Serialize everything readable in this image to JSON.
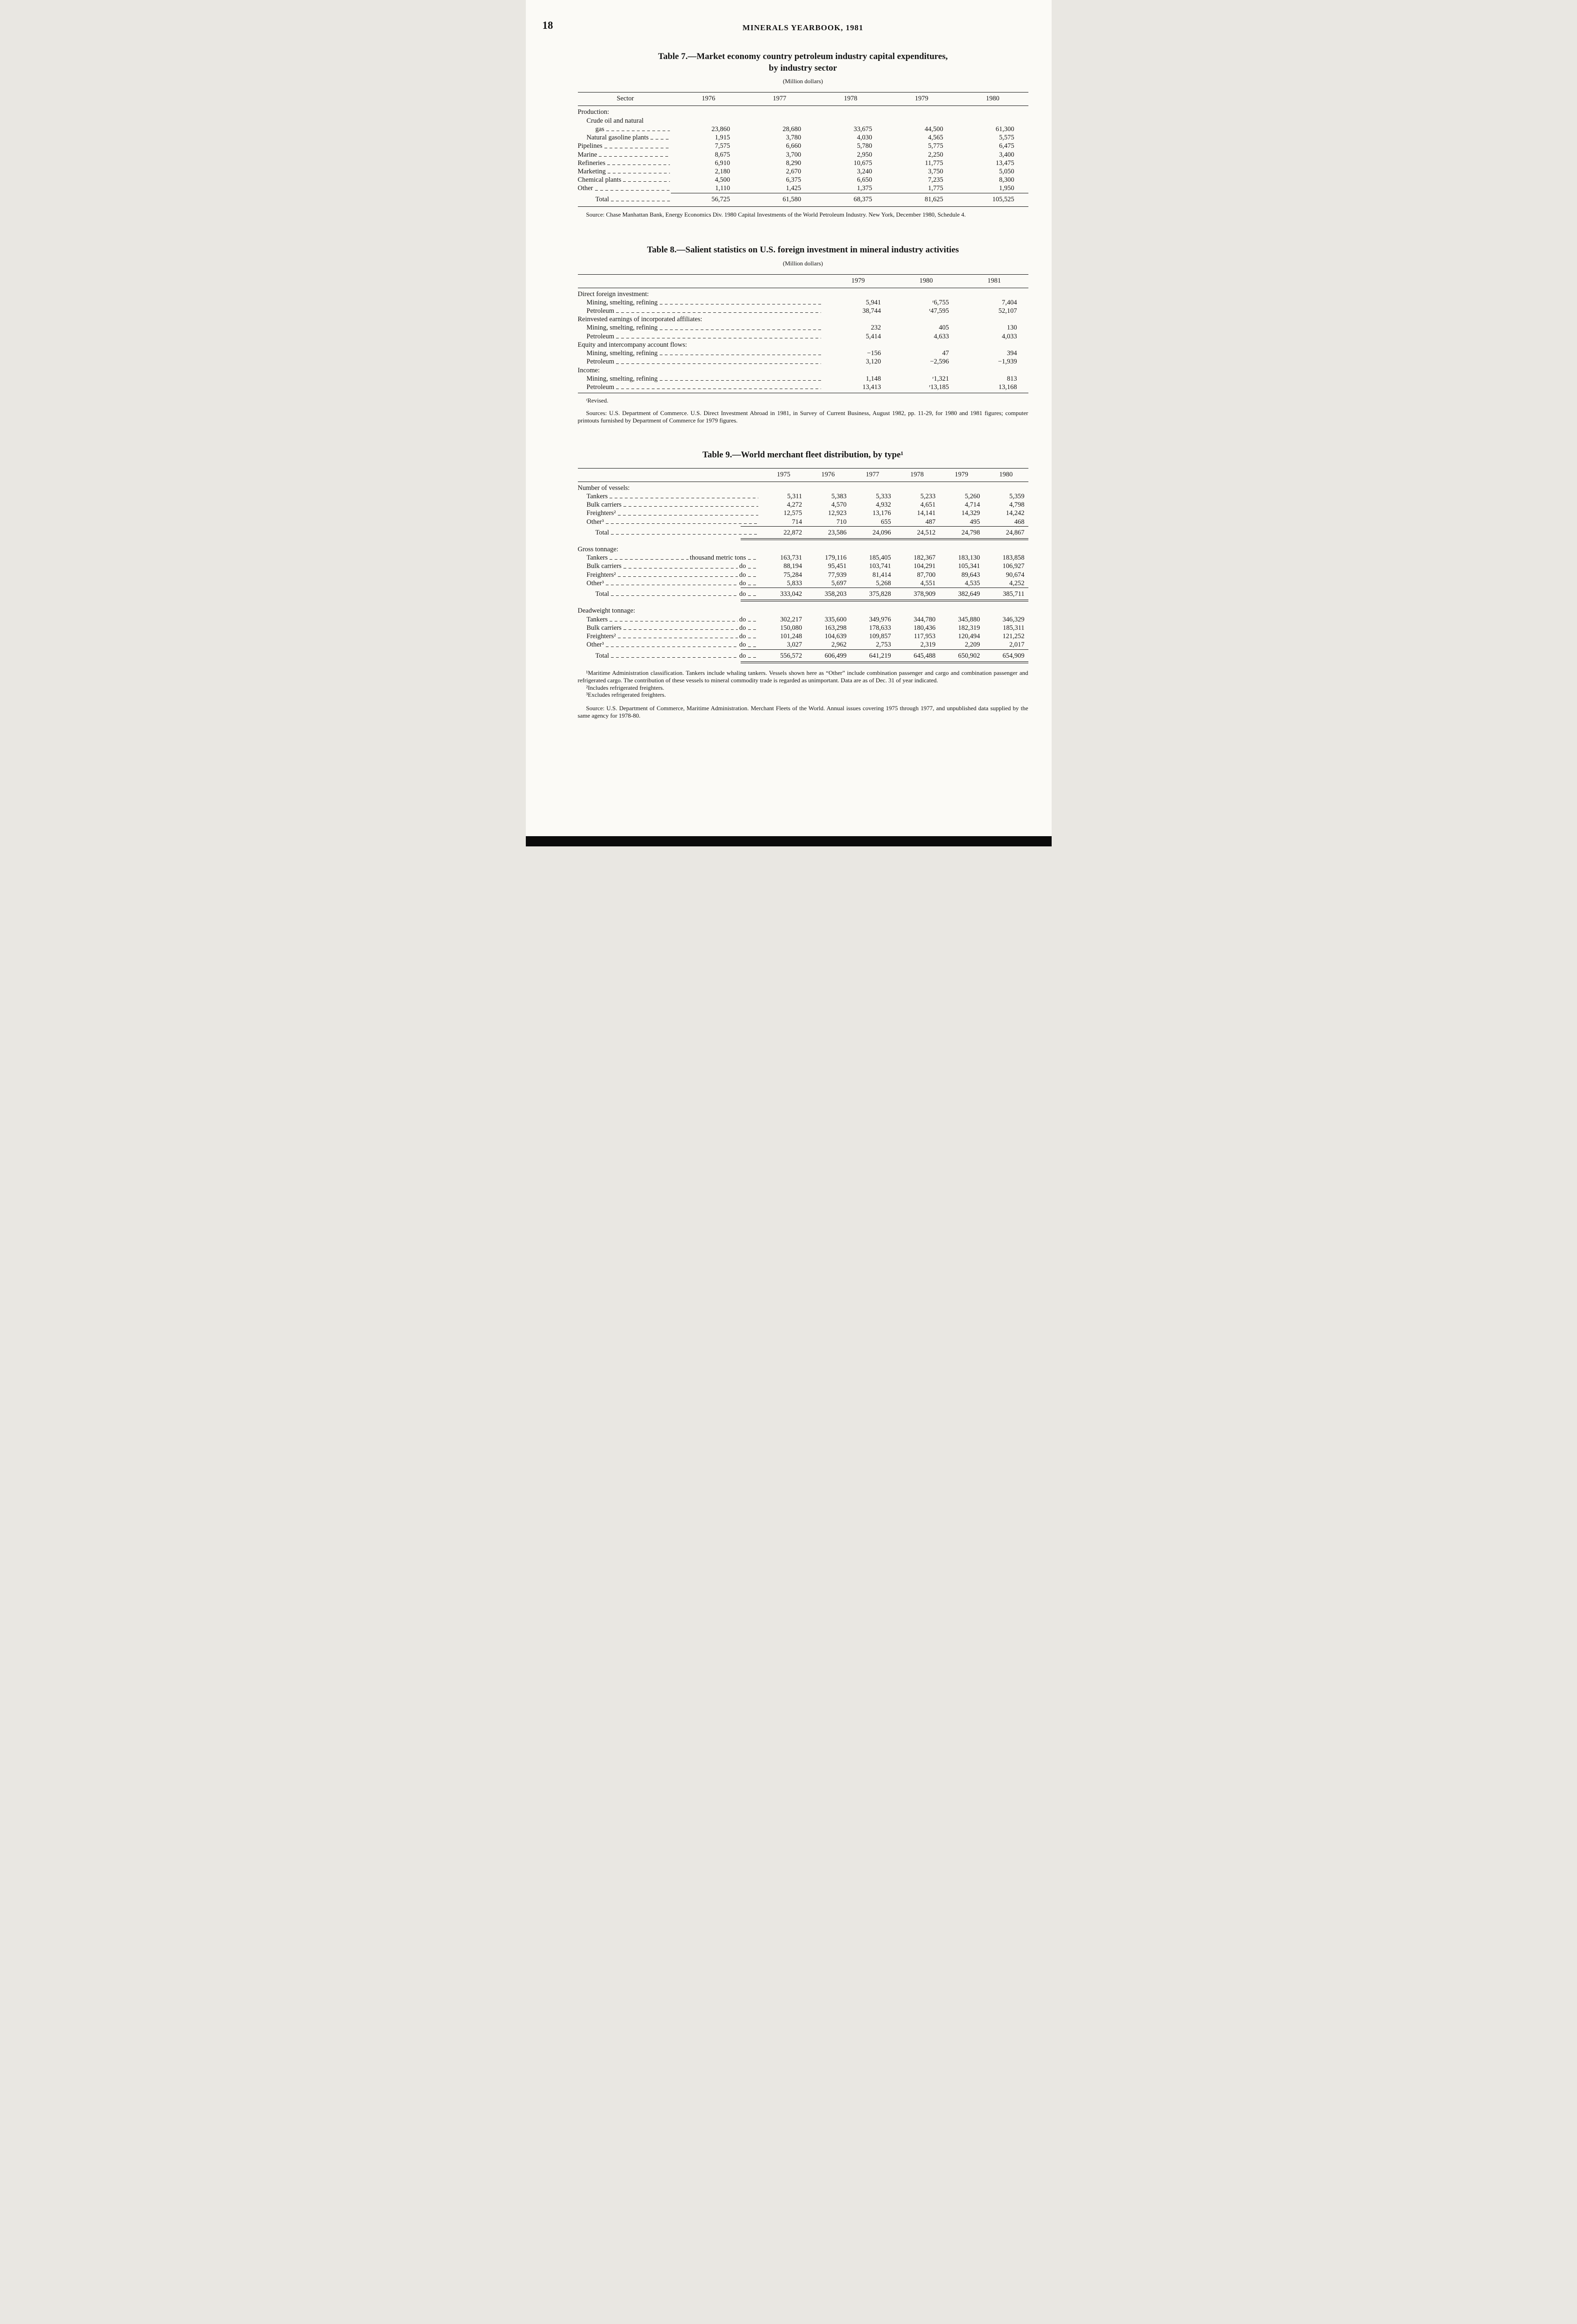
{
  "page": {
    "number": "18",
    "header": "MINERALS YEARBOOK, 1981"
  },
  "tables": [
    {
      "id": "table7",
      "title": "Table 7.—Market economy country petroleum industry capital expenditures,\nby industry sector",
      "subtitle": "(Million dollars)",
      "stub_header": "Sector",
      "years": [
        "1976",
        "1977",
        "1978",
        "1979",
        "1980"
      ],
      "bottom_rule": true,
      "rows": [
        {
          "type": "section",
          "label": "Production:"
        },
        {
          "type": "cont",
          "label": "Crude oil and natural",
          "indent": 1
        },
        {
          "type": "data",
          "label": "gas",
          "indent": 2,
          "values": [
            "23,860",
            "28,680",
            "33,675",
            "44,500",
            "61,300"
          ]
        },
        {
          "type": "data",
          "label": "Natural gasoline plants",
          "indent": 1,
          "values": [
            "1,915",
            "3,780",
            "4,030",
            "4,565",
            "5,575"
          ]
        },
        {
          "type": "data",
          "label": "Pipelines",
          "indent": 0,
          "values": [
            "7,575",
            "6,660",
            "5,780",
            "5,775",
            "6,475"
          ]
        },
        {
          "type": "data",
          "label": "Marine",
          "indent": 0,
          "values": [
            "8,675",
            "3,700",
            "2,950",
            "2,250",
            "3,400"
          ]
        },
        {
          "type": "data",
          "label": "Refineries",
          "indent": 0,
          "values": [
            "6,910",
            "8,290",
            "10,675",
            "11,775",
            "13,475"
          ]
        },
        {
          "type": "data",
          "label": "Marketing",
          "indent": 0,
          "values": [
            "2,180",
            "2,670",
            "3,240",
            "3,750",
            "5,050"
          ]
        },
        {
          "type": "data",
          "label": "Chemical plants",
          "indent": 0,
          "values": [
            "4,500",
            "6,375",
            "6,650",
            "7,235",
            "8,300"
          ]
        },
        {
          "type": "data",
          "label": "Other",
          "indent": 0,
          "values": [
            "1,110",
            "1,425",
            "1,375",
            "1,775",
            "1,950"
          ]
        },
        {
          "type": "total",
          "label": "Total",
          "indent": 2,
          "rule_above": true,
          "values": [
            "56,725",
            "61,580",
            "68,375",
            "81,625",
            "105,525"
          ]
        }
      ],
      "source": "Source: Chase Manhattan Bank, Energy Economics Div. 1980 Capital Investments of the World Petroleum Industry. New York, December 1980, Schedule 4."
    },
    {
      "id": "table8",
      "title": "Table 8.—Salient statistics on U.S. foreign investment in mineral industry activities",
      "subtitle": "(Million dollars)",
      "stub_header": "",
      "years": [
        "1979",
        "1980",
        "1981"
      ],
      "bottom_rule": true,
      "rows": [
        {
          "type": "section",
          "label": "Direct foreign investment:"
        },
        {
          "type": "data",
          "label": "Mining, smelting, refining",
          "indent": 1,
          "values": [
            "5,941",
            "ʳ6,755",
            "7,404"
          ]
        },
        {
          "type": "data",
          "label": "Petroleum",
          "indent": 1,
          "values": [
            "38,744",
            "ʳ47,595",
            "52,107"
          ]
        },
        {
          "type": "section",
          "label": "Reinvested earnings of incorporated affiliates:"
        },
        {
          "type": "data",
          "label": "Mining, smelting, refining",
          "indent": 1,
          "values": [
            "232",
            "405",
            "130"
          ]
        },
        {
          "type": "data",
          "label": "Petroleum",
          "indent": 1,
          "values": [
            "5,414",
            "4,633",
            "4,033"
          ]
        },
        {
          "type": "section",
          "label": "Equity and intercompany account flows:"
        },
        {
          "type": "data",
          "label": "Mining, smelting, refining",
          "indent": 1,
          "values": [
            "−156",
            "47",
            "394"
          ]
        },
        {
          "type": "data",
          "label": "Petroleum",
          "indent": 1,
          "values": [
            "3,120",
            "−2,596",
            "−1,939"
          ]
        },
        {
          "type": "section",
          "label": "Income:"
        },
        {
          "type": "data",
          "label": "Mining, smelting, refining",
          "indent": 1,
          "values": [
            "1,148",
            "ʳ1,321",
            "813"
          ]
        },
        {
          "type": "data",
          "label": "Petroleum",
          "indent": 1,
          "values": [
            "13,413",
            "ʳ13,185",
            "13,168"
          ]
        }
      ],
      "footnote": "ʳRevised.",
      "source": "Sources: U.S. Department of Commerce. U.S. Direct Investment Abroad in 1981, in Survey of Current Business, August 1982, pp. 11-29, for 1980 and 1981 figures; computer printouts furnished by Department of Commerce for 1979 figures."
    },
    {
      "id": "table9",
      "title": "Table 9.—World merchant fleet distribution, by type¹",
      "subtitle": "",
      "stub_header": "",
      "years": [
        "1975",
        "1976",
        "1977",
        "1978",
        "1979",
        "1980"
      ],
      "bottom_rule": false,
      "rows": [
        {
          "type": "section",
          "label": "Number of vessels:"
        },
        {
          "type": "data",
          "label": "Tankers",
          "indent": 1,
          "values": [
            "5,311",
            "5,383",
            "5,333",
            "5,233",
            "5,260",
            "5,359"
          ]
        },
        {
          "type": "data",
          "label": "Bulk carriers",
          "indent": 1,
          "values": [
            "4,272",
            "4,570",
            "4,932",
            "4,651",
            "4,714",
            "4,798"
          ]
        },
        {
          "type": "data",
          "label": "Freighters²",
          "indent": 1,
          "values": [
            "12,575",
            "12,923",
            "13,176",
            "14,141",
            "14,329",
            "14,242"
          ]
        },
        {
          "type": "data",
          "label": "Other³",
          "indent": 1,
          "values": [
            "714",
            "710",
            "655",
            "487",
            "495",
            "468"
          ]
        },
        {
          "type": "total",
          "label": "Total",
          "indent": 2,
          "rule_above": true,
          "double_rule_below": true,
          "values": [
            "22,872",
            "23,586",
            "24,096",
            "24,512",
            "24,798",
            "24,867"
          ]
        },
        {
          "type": "section",
          "label": "Gross tonnage:",
          "space_above": true
        },
        {
          "type": "data",
          "label": "Tankers",
          "indent": 1,
          "unit": "thousand metric tons",
          "values": [
            "163,731",
            "179,116",
            "185,405",
            "182,367",
            "183,130",
            "183,858"
          ]
        },
        {
          "type": "data",
          "label": "Bulk carriers",
          "indent": 1,
          "unit": "do",
          "values": [
            "88,194",
            "95,451",
            "103,741",
            "104,291",
            "105,341",
            "106,927"
          ]
        },
        {
          "type": "data",
          "label": "Freighters²",
          "indent": 1,
          "unit": "do",
          "values": [
            "75,284",
            "77,939",
            "81,414",
            "87,700",
            "89,643",
            "90,674"
          ]
        },
        {
          "type": "data",
          "label": "Other³",
          "indent": 1,
          "unit": "do",
          "values": [
            "5,833",
            "5,697",
            "5,268",
            "4,551",
            "4,535",
            "4,252"
          ]
        },
        {
          "type": "total",
          "label": "Total",
          "indent": 2,
          "unit": "do",
          "rule_above": true,
          "double_rule_below": true,
          "values": [
            "333,042",
            "358,203",
            "375,828",
            "378,909",
            "382,649",
            "385,711"
          ]
        },
        {
          "type": "section",
          "label": "Deadweight tonnage:",
          "space_above": true
        },
        {
          "type": "data",
          "label": "Tankers",
          "indent": 1,
          "unit": "do",
          "values": [
            "302,217",
            "335,600",
            "349,976",
            "344,780",
            "345,880",
            "346,329"
          ]
        },
        {
          "type": "data",
          "label": "Bulk carriers",
          "indent": 1,
          "unit": "do",
          "values": [
            "150,080",
            "163,298",
            "178,633",
            "180,436",
            "182,319",
            "185,311"
          ]
        },
        {
          "type": "data",
          "label": "Freighters²",
          "indent": 1,
          "unit": "do",
          "values": [
            "101,248",
            "104,639",
            "109,857",
            "117,953",
            "120,494",
            "121,252"
          ]
        },
        {
          "type": "data",
          "label": "Other³",
          "indent": 1,
          "unit": "do",
          "values": [
            "3,027",
            "2,962",
            "2,753",
            "2,319",
            "2,209",
            "2,017"
          ]
        },
        {
          "type": "total",
          "label": "Total",
          "indent": 2,
          "unit": "do",
          "rule_above": true,
          "double_rule_below": true,
          "values": [
            "556,572",
            "606,499",
            "641,219",
            "645,488",
            "650,902",
            "654,909"
          ]
        }
      ],
      "footnotes": [
        "¹Maritime Administration classification. Tankers include whaling tankers. Vessels shown here as “Other” include combination passenger and cargo and combination passenger and refrigerated cargo. The contribution of these vessels to mineral commodity trade is regarded as unimportant. Data are as of Dec. 31 of year indicated.",
        "²Includes refrigerated freighters.",
        "³Excludes refrigerated freighters."
      ],
      "source": "Source: U.S. Department of Commerce, Maritime Administration. Merchant Fleets of the World. Annual issues covering 1975 through 1977, and unpublished data supplied by the same agency for 1978-80."
    }
  ]
}
